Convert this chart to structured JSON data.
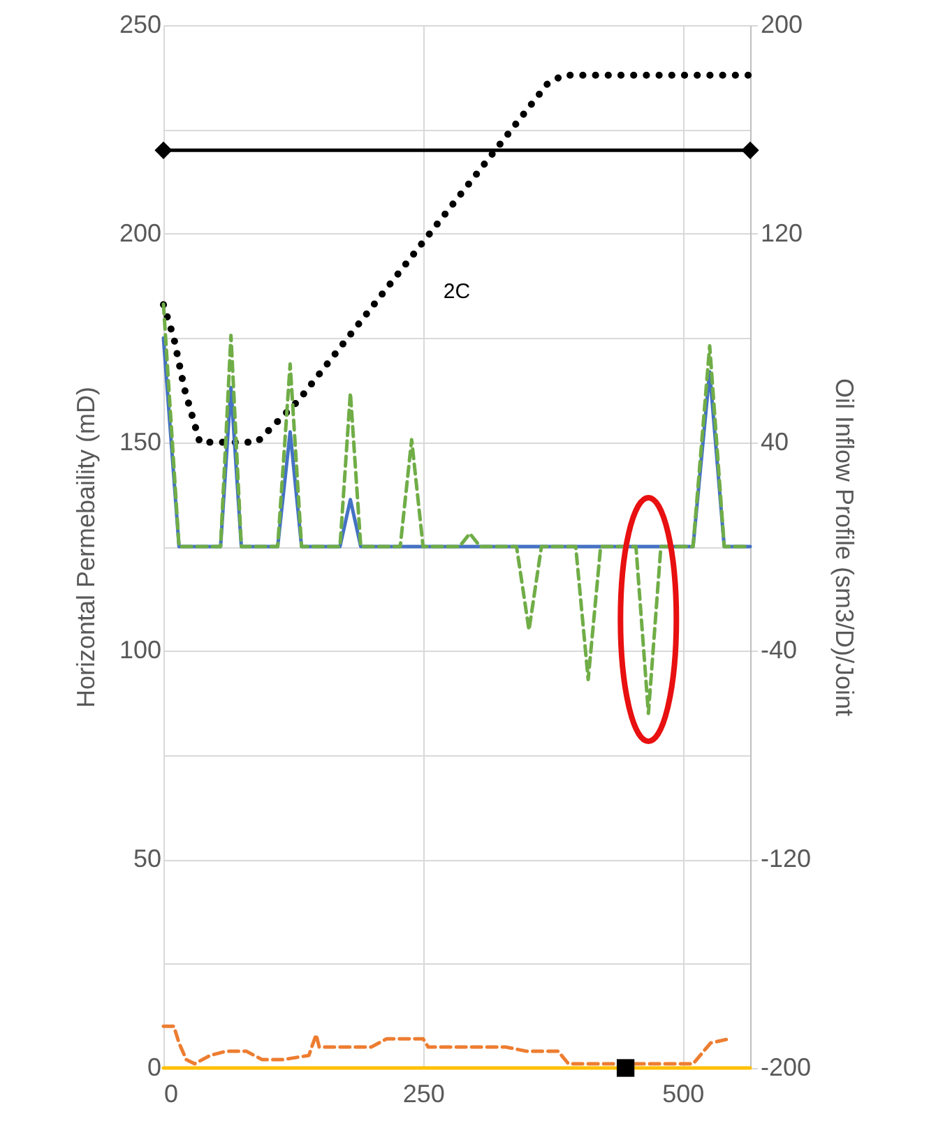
{
  "chart_data": {
    "type": "line",
    "xlabel": null,
    "ylabel": "Horizontal Permebaility (mD)",
    "y2label": "Oil Inflow Profile (sm3/D)/Joint",
    "xlim": [
      0,
      565
    ],
    "xticks": [
      0,
      250,
      500
    ],
    "ylim": [
      0,
      250
    ],
    "yticks": [
      0,
      {
        "value": 25,
        "label": null
      },
      50,
      {
        "value": 75,
        "label": null
      },
      100,
      {
        "value": 125,
        "label": null
      },
      150,
      {
        "value": 175,
        "label": null
      },
      200,
      {
        "value": 225,
        "label": null
      },
      250
    ],
    "y2lim": [
      -200,
      200
    ],
    "y2ticks": [
      -200,
      -120,
      -40,
      40,
      120,
      200
    ],
    "grid": true,
    "annotations": [
      "2C"
    ],
    "series": [
      {
        "color": "#000000",
        "line_style": "dotted",
        "x": [
          0,
          10,
          20,
          35,
          90,
          130,
          370,
          385,
          565
        ],
        "values": [
          183,
          175,
          163,
          150,
          150,
          160,
          236,
          238,
          238
        ]
      },
      {
        "color": "#000000",
        "line_style": "solid",
        "marker": "diamond",
        "x": [
          0,
          565
        ],
        "values": [
          220,
          220
        ]
      },
      {
        "color": "#4472c4",
        "line_style": "solid",
        "axis": "y2",
        "x": [
          0,
          15,
          55,
          65,
          75,
          110,
          122,
          133,
          170,
          180,
          190,
          510,
          526,
          540,
          565
        ],
        "values": [
          80,
          0,
          0,
          61,
          0,
          0,
          44,
          0,
          0,
          18,
          0,
          0,
          67,
          0,
          0
        ]
      },
      {
        "color": "#70ad47",
        "line_style": "dashed",
        "axis": "y2",
        "x": [
          0,
          15,
          55,
          65,
          75,
          110,
          122,
          133,
          170,
          180,
          190,
          228,
          239,
          250,
          285,
          295,
          305,
          340,
          352,
          364,
          397,
          409,
          421,
          455,
          467,
          479,
          510,
          526,
          540,
          565
        ],
        "values": [
          93,
          0,
          0,
          81,
          0,
          0,
          70,
          0,
          0,
          59,
          0,
          0,
          41,
          0,
          0,
          5,
          0,
          0,
          -32,
          0,
          0,
          -51,
          0,
          0,
          -64,
          0,
          0,
          77,
          0,
          0
        ]
      },
      {
        "color": "#ed7d31",
        "line_style": "dashed",
        "x": [
          0,
          10,
          15,
          22,
          30,
          45,
          60,
          80,
          95,
          115,
          140,
          147,
          150,
          200,
          215,
          250,
          255,
          330,
          350,
          380,
          390,
          510,
          527,
          545
        ],
        "values": [
          10,
          10,
          6,
          2,
          1,
          3,
          4,
          4,
          2,
          2,
          3,
          8,
          5,
          5,
          7,
          7,
          5,
          5,
          4,
          4,
          1,
          1,
          6,
          7
        ]
      },
      {
        "color": "#ffc000",
        "line_style": "solid",
        "x": [
          0,
          565
        ],
        "values": [
          0,
          0
        ]
      },
      {
        "type": "scatter",
        "color": "#000000",
        "marker": "square",
        "x": [
          445
        ],
        "values": [
          0
        ]
      }
    ]
  }
}
